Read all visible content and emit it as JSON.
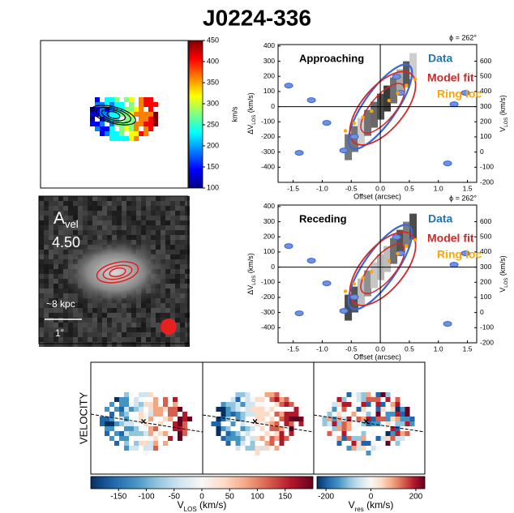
{
  "title": "J0224-336",
  "chart_data": [
    {
      "type": "colorbar",
      "orientation": "vertical",
      "colormap": "jet",
      "label": "km/s",
      "ylim": [
        100,
        450
      ],
      "yticks": [
        100,
        150,
        200,
        250,
        300,
        350,
        400,
        450
      ]
    },
    {
      "type": "image",
      "label": [
        "A",
        "vel"
      ],
      "annotations": [
        "4.50",
        "~8 kpc",
        "1”"
      ]
    },
    {
      "type": "pv",
      "phi_label": "ϕ = 262°",
      "panel_label": "Approaching",
      "xlabel": "Offset (arcsec)",
      "ylabel": [
        "ΔV",
        "LOS",
        " (km/s)"
      ],
      "y2label": [
        "V",
        "LOS",
        " (km/s)"
      ],
      "xlim": [
        -1.76,
        1.66
      ],
      "xticks": [
        -1.5,
        {
          "value": -1,
          "label": "-1.0"
        },
        -0.5,
        {
          "value": 0,
          "label": "0.0"
        },
        0.5,
        {
          "value": 1,
          "label": "1.0"
        },
        1.5
      ],
      "ylim": [
        -500,
        410
      ],
      "yticks": [
        -400,
        -300,
        -200,
        -100,
        0,
        100,
        200,
        300,
        400
      ],
      "y2lim": [
        -200,
        710
      ],
      "y2ticks": [
        -200,
        -100,
        0,
        100,
        200,
        300,
        400,
        500,
        600
      ],
      "series": [
        {
          "name": "Data",
          "color": "#1f77b4"
        },
        {
          "name": "Model fit",
          "color": "#d62728"
        },
        {
          "name": "Ring loc",
          "color": "#ffa500",
          "x": [
            -0.6,
            -0.45,
            -0.3,
            -0.15,
            0.15,
            0.3,
            0.45,
            0.6
          ],
          "values": [
            -160,
            -110,
            -70,
            -30,
            40,
            90,
            140,
            180
          ]
        }
      ]
    },
    {
      "type": "pv",
      "phi_label": "ϕ = 262°",
      "panel_label": "Receding",
      "xlabel": "Offset (arcsec)",
      "ylabel": [
        "ΔV",
        "LOS",
        " (km/s)"
      ],
      "y2label": [
        "V",
        "LOS",
        " (km/s)"
      ],
      "xlim": [
        -1.76,
        1.66
      ],
      "xticks": [
        -1.5,
        {
          "value": -1,
          "label": "-1.0"
        },
        -0.5,
        {
          "value": 0,
          "label": "0.0"
        },
        0.5,
        {
          "value": 1,
          "label": "1.0"
        },
        1.5
      ],
      "ylim": [
        -500,
        410
      ],
      "yticks": [
        -400,
        -300,
        -200,
        -100,
        0,
        100,
        200,
        300,
        400
      ],
      "y2lim": [
        -200,
        710
      ],
      "y2ticks": [
        -200,
        -100,
        0,
        100,
        200,
        300,
        400,
        500,
        600
      ],
      "series": [
        {
          "name": "Data",
          "color": "#1f77b4"
        },
        {
          "name": "Model fit",
          "color": "#d62728"
        },
        {
          "name": "Ring loc",
          "color": "#ffa500",
          "x": [
            -0.6,
            -0.45,
            -0.3,
            -0.15,
            0.15,
            0.3,
            0.45,
            0.6
          ],
          "values": [
            -160,
            -110,
            -70,
            -30,
            40,
            90,
            140,
            180
          ]
        }
      ]
    },
    {
      "type": "map-grid",
      "ylabel": "VELOCITY"
    },
    {
      "type": "colorbar",
      "orientation": "horizontal",
      "colormap": "RdBu_r",
      "label": [
        "V",
        "LOS",
        " (km/s)"
      ],
      "xlim": [
        -200,
        200
      ],
      "xticks": [
        -150,
        -100,
        -50,
        0,
        50,
        100,
        150
      ]
    },
    {
      "type": "colorbar",
      "orientation": "horizontal",
      "colormap": "RdBu_r",
      "label": [
        "V",
        "res",
        " (km/s)"
      ],
      "xlim": [
        -240,
        240
      ],
      "xticks": [
        -200,
        0,
        200
      ]
    }
  ]
}
